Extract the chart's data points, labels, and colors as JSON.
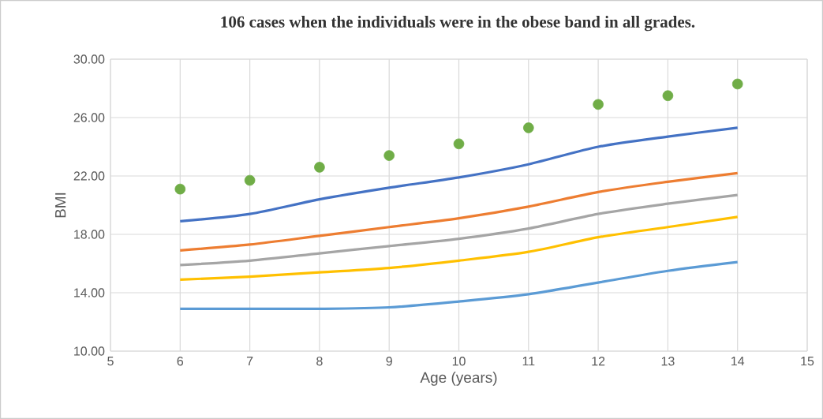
{
  "chart_data": {
    "type": "line",
    "title": "106 cases when the individuals were in the obese band in all grades.",
    "xlabel": "Age (years)",
    "ylabel": "BMI",
    "x": [
      6,
      7,
      8,
      9,
      10,
      11,
      12,
      13,
      14
    ],
    "xlim": [
      5,
      15
    ],
    "xticks": [
      5,
      6,
      7,
      8,
      9,
      10,
      11,
      12,
      13,
      14,
      15
    ],
    "ylim": [
      10,
      30
    ],
    "yticks": [
      {
        "value": 10,
        "label": "10.00"
      },
      {
        "value": 14,
        "label": "14.00"
      },
      {
        "value": 18,
        "label": "18.00"
      },
      {
        "value": 22,
        "label": "22.00"
      },
      {
        "value": 26,
        "label": "26.00"
      },
      {
        "value": 30,
        "label": "30.00"
      }
    ],
    "grid": true,
    "series": [
      {
        "type": "scatter",
        "marker": "circle",
        "color": "#70ad47",
        "values": [
          21.1,
          21.7,
          22.6,
          23.4,
          24.2,
          25.3,
          26.9,
          27.5,
          28.3
        ]
      },
      {
        "color": "#4472c4",
        "values": [
          18.9,
          19.4,
          20.4,
          21.2,
          21.9,
          22.8,
          24.0,
          24.7,
          25.3
        ]
      },
      {
        "color": "#ed7d31",
        "values": [
          16.9,
          17.3,
          17.9,
          18.5,
          19.1,
          19.9,
          20.9,
          21.6,
          22.2
        ]
      },
      {
        "color": "#a5a5a5",
        "values": [
          15.9,
          16.2,
          16.7,
          17.2,
          17.7,
          18.4,
          19.4,
          20.1,
          20.7
        ]
      },
      {
        "color": "#ffc000",
        "values": [
          14.9,
          15.1,
          15.4,
          15.7,
          16.2,
          16.8,
          17.8,
          18.5,
          19.2
        ]
      },
      {
        "color": "#5b9bd5",
        "values": [
          12.9,
          12.9,
          12.9,
          13.0,
          13.4,
          13.9,
          14.7,
          15.5,
          16.1
        ]
      }
    ]
  }
}
